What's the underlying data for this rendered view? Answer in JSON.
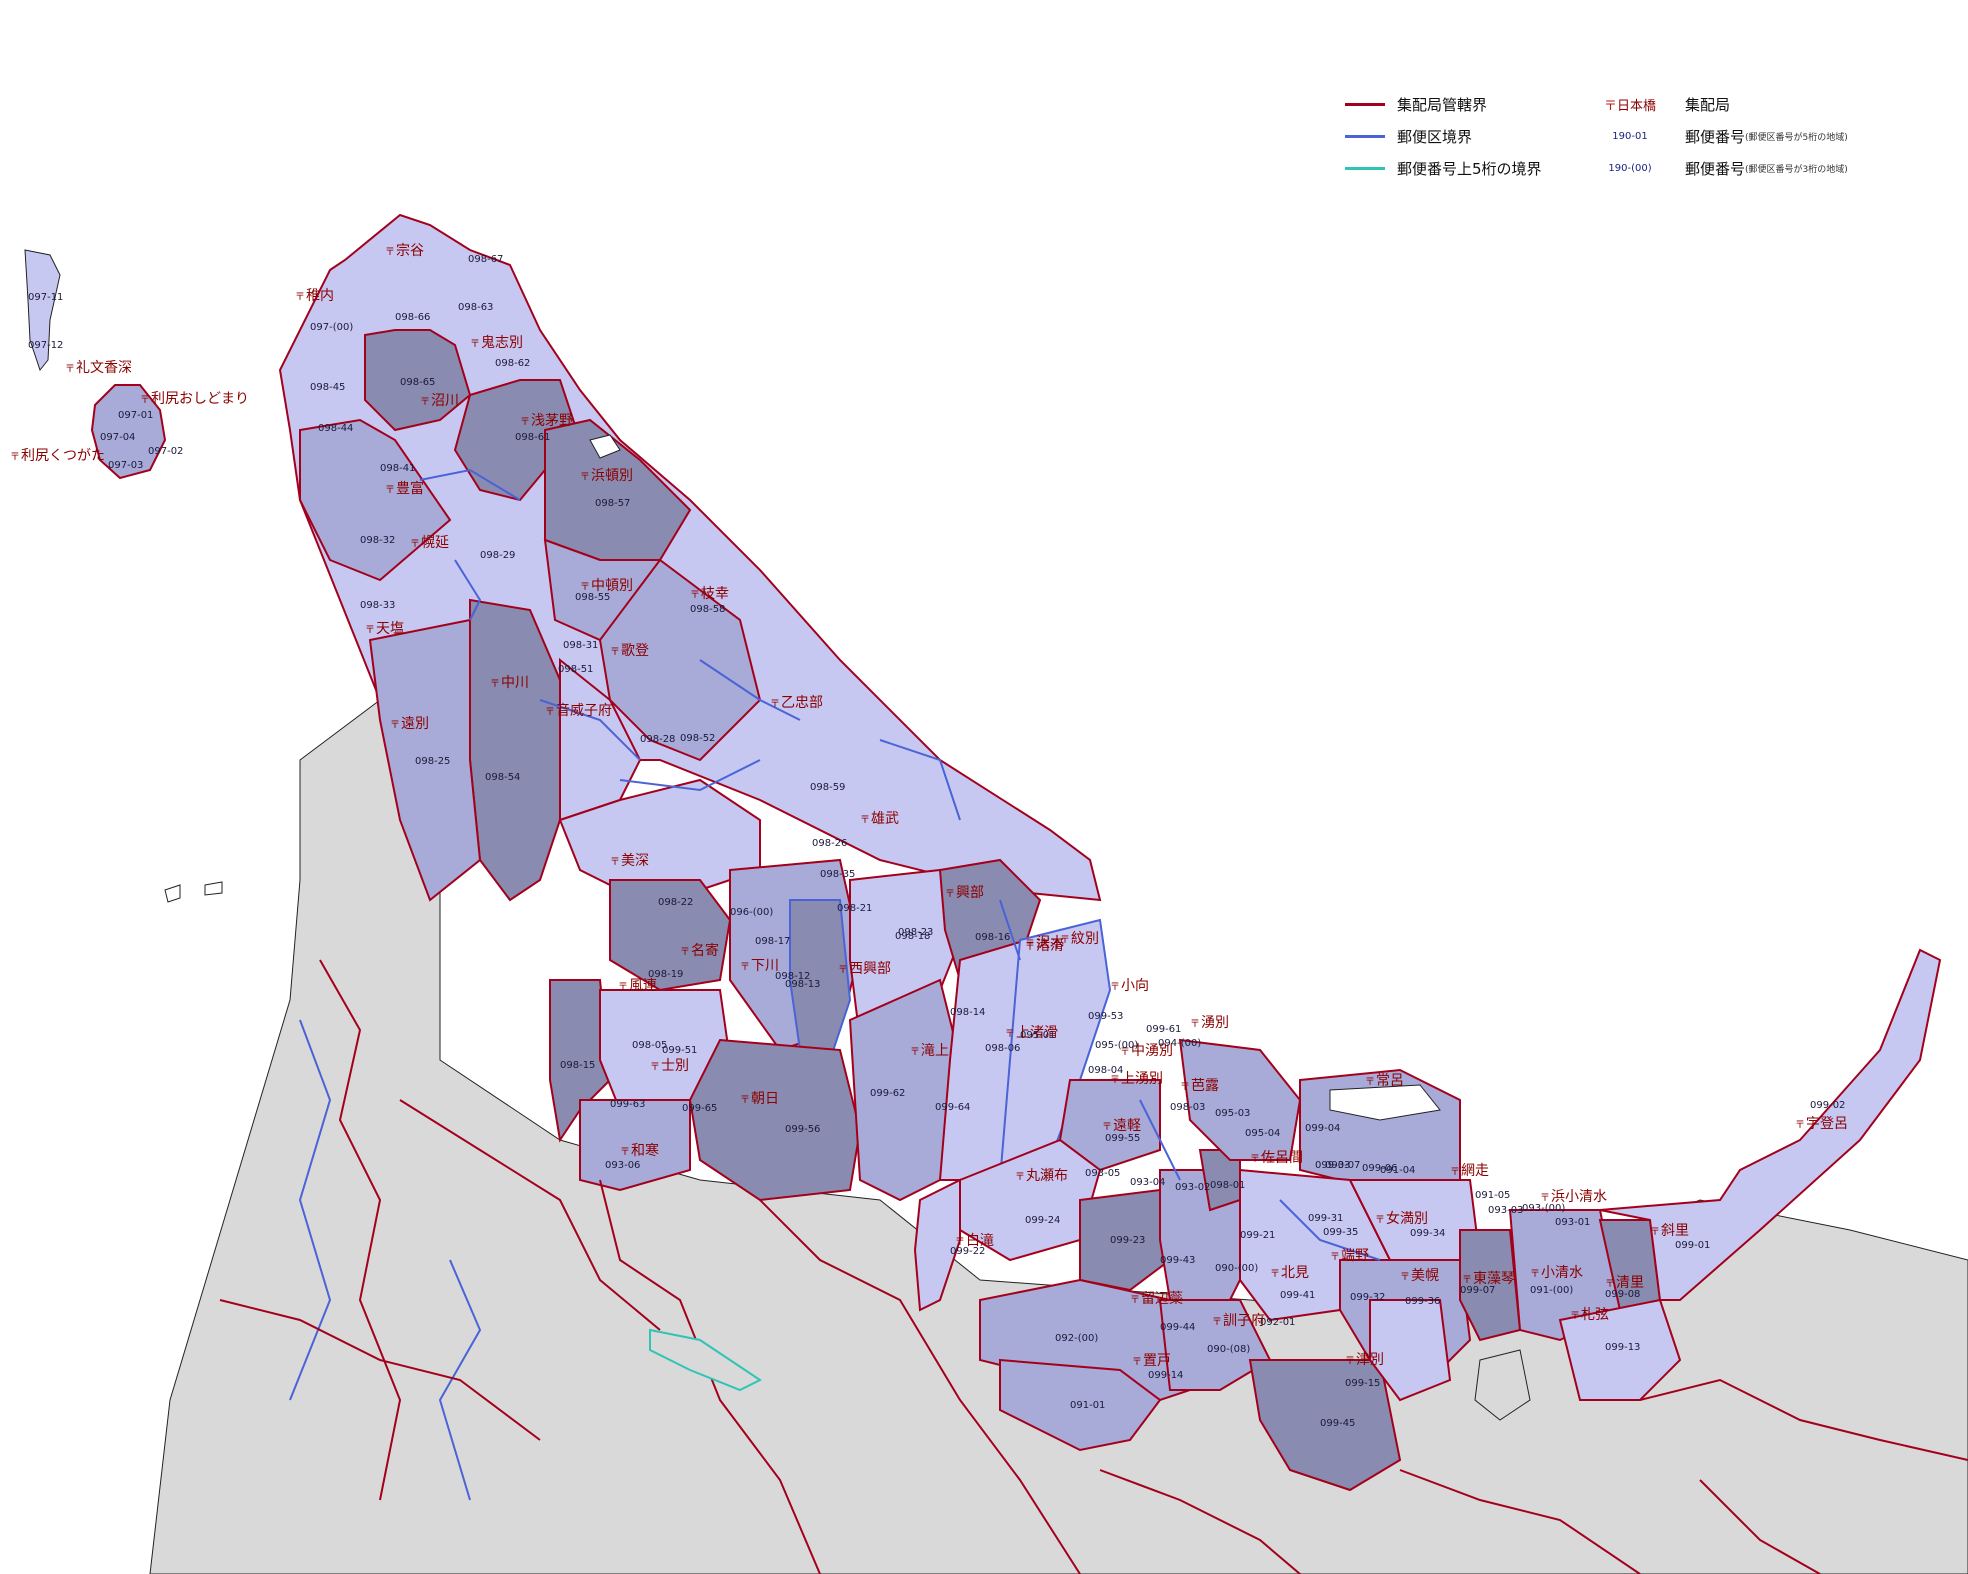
{
  "legend": {
    "line_items": [
      {
        "label": "集配局管轄界",
        "color": "#a3001b"
      },
      {
        "label": "郵便区境界",
        "color": "#4a63d6"
      },
      {
        "label": "郵便番号上5桁の境界",
        "color": "#2ec4b6"
      }
    ],
    "office_sample": "日本橋",
    "office_label": "集配局",
    "code5_sample": "190-01",
    "code5_label": "郵便番号",
    "code5_note": "(郵便区番号が5桁の地域)",
    "code3_sample": "190-(00)",
    "code3_label": "郵便番号",
    "code3_note": "(郵便区番号が3桁の地域)"
  },
  "colors": {
    "sea": "#ffffff",
    "outside": "#d9d9d9",
    "zone_light": "#c7c8f2",
    "zone_mid": "#a8aad8",
    "zone_dark": "#8a8bb0",
    "office_border": "#a3001b",
    "district_border": "#4a63d6",
    "label_red": "#8b0000",
    "code_text": "#1a1a3a"
  },
  "offices": [
    "宗谷",
    "稚内",
    "鬼志別",
    "礼文香深",
    "利尻おしどまり",
    "利尻くつがた",
    "沼川",
    "浅茅野",
    "豊富",
    "浜頓別",
    "幌延",
    "中頓別",
    "天塩",
    "枝幸",
    "歌登",
    "中川",
    "乙忠部",
    "音威子府",
    "遠別",
    "雄武",
    "美深",
    "興部",
    "名寄",
    "沢木",
    "渚滑",
    "下川",
    "西興部",
    "紋別",
    "風連",
    "小向",
    "滝上",
    "湧別",
    "上渚滑",
    "中湧別",
    "士別",
    "上湧別",
    "芭露",
    "朝日",
    "遠軽",
    "常呂",
    "佐呂間",
    "網走",
    "浜小清水",
    "宇登呂",
    "和寒",
    "丸瀬布",
    "白滝",
    "女満別",
    "斜里",
    "端野",
    "北見",
    "美幌",
    "東藻琴",
    "小清水",
    "清里",
    "留辺蘂",
    "訓子府",
    "札弦",
    "置戸",
    "津別"
  ],
  "codes": [
    "097-11",
    "097-12",
    "097-(00)",
    "098-67",
    "098-66",
    "098-63",
    "098-62",
    "098-65",
    "098-45",
    "098-44",
    "097-01",
    "097-04",
    "097-02",
    "097-03",
    "098-61",
    "098-41",
    "098-57",
    "098-32",
    "098-29",
    "098-55",
    "098-33",
    "098-58",
    "098-31",
    "098-28",
    "098-51",
    "098-52",
    "098-25",
    "098-54",
    "098-59",
    "098-35",
    "098-26",
    "098-18",
    "098-23",
    "098-22",
    "098-17",
    "098-21",
    "098-16",
    "096-(00)",
    "098-12",
    "098-14",
    "098-19",
    "098-13",
    "098-05",
    "098-15",
    "099-51",
    "098-04",
    "098-06",
    "095-01",
    "095-(00)",
    "099-61",
    "099-53",
    "094-(00)",
    "099-62",
    "099-64",
    "099-63",
    "099-65",
    "099-56",
    "099-55",
    "098-03",
    "095-03",
    "095-04",
    "099-04",
    "093-07",
    "093-06",
    "093-05",
    "093-04",
    "093-02",
    "098-01",
    "099-03",
    "099-06",
    "091-04",
    "091-05",
    "093-03",
    "093-(00)",
    "093-01",
    "099-24",
    "099-31",
    "099-35",
    "099-34",
    "099-02",
    "099-21",
    "099-22",
    "099-23",
    "099-43",
    "090-(00)",
    "099-01",
    "099-07",
    "091-(00)",
    "099-08",
    "099-41",
    "099-32",
    "099-36",
    "099-44",
    "090-(08)",
    "092-01",
    "092-(00)",
    "099-13",
    "099-14",
    "099-15",
    "091-01",
    "099-45",
    "099-11",
    "092-02",
    "099-12",
    "092-03"
  ]
}
